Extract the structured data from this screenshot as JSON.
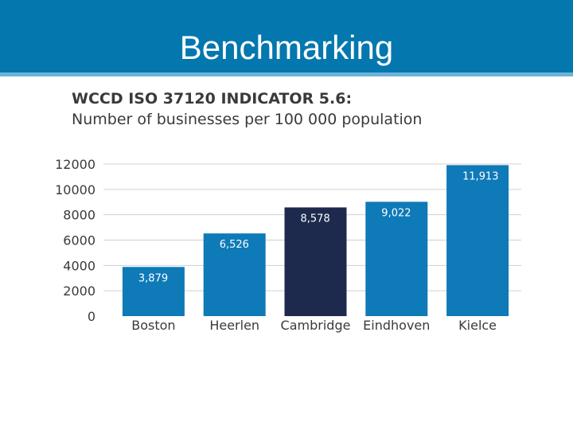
{
  "slide": {
    "title": "Benchmarking"
  },
  "colors": {
    "header": "#0477ae",
    "bar": "#0f7ab8",
    "highlight": "#1d2a4d",
    "grid": "#d0d0d0",
    "text": "#3a3a3a"
  },
  "chart_data": {
    "type": "bar",
    "title": "WCCD ISO 37120 INDICATOR 5.6:",
    "subtitle": "Number of businesses per 100 000 population",
    "categories": [
      "Boston",
      "Heerlen",
      "Cambridge",
      "Eindhoven",
      "Kielce"
    ],
    "values": [
      3879,
      6526,
      8578,
      9022,
      11913
    ],
    "value_labels": [
      "3,879",
      "6,526",
      "8,578",
      "9,022",
      "11,913"
    ],
    "highlight_index": 2,
    "ylim": [
      0,
      12000
    ],
    "yticks": [
      "0",
      "2000",
      "4000",
      "6000",
      "8000",
      "10000",
      "12000"
    ],
    "xlabel": "",
    "ylabel": "",
    "grid": true
  }
}
